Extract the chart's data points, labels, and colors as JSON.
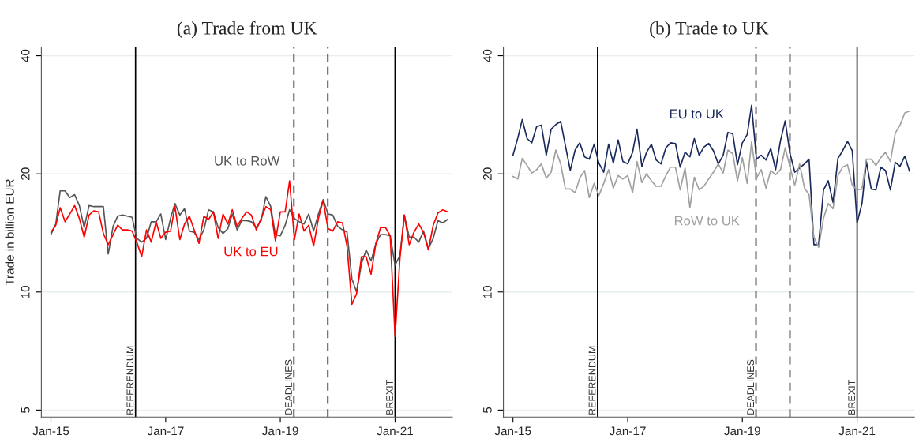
{
  "chart_data": [
    {
      "type": "line",
      "title": "(a) Trade from UK",
      "ylabel": "Trade in billion EUR",
      "log": "y",
      "grid": "y",
      "legend": false,
      "x": [
        "2015-01",
        "2015-02",
        "2015-03",
        "2015-04",
        "2015-05",
        "2015-06",
        "2015-07",
        "2015-08",
        "2015-09",
        "2015-10",
        "2015-11",
        "2015-12",
        "2016-01",
        "2016-02",
        "2016-03",
        "2016-04",
        "2016-05",
        "2016-06",
        "2016-07",
        "2016-08",
        "2016-09",
        "2016-10",
        "2016-11",
        "2016-12",
        "2017-01",
        "2017-02",
        "2017-03",
        "2017-04",
        "2017-05",
        "2017-06",
        "2017-07",
        "2017-08",
        "2017-09",
        "2017-10",
        "2017-11",
        "2017-12",
        "2018-01",
        "2018-02",
        "2018-03",
        "2018-04",
        "2018-05",
        "2018-06",
        "2018-07",
        "2018-08",
        "2018-09",
        "2018-10",
        "2018-11",
        "2018-12",
        "2019-01",
        "2019-02",
        "2019-03",
        "2019-04",
        "2019-05",
        "2019-06",
        "2019-07",
        "2019-08",
        "2019-09",
        "2019-10",
        "2019-11",
        "2019-12",
        "2020-01",
        "2020-02",
        "2020-03",
        "2020-04",
        "2020-05",
        "2020-06",
        "2020-07",
        "2020-08",
        "2020-09",
        "2020-10",
        "2020-11",
        "2020-12",
        "2021-01",
        "2021-02",
        "2021-03",
        "2021-04",
        "2021-05",
        "2021-06",
        "2021-07",
        "2021-08",
        "2021-09",
        "2021-10",
        "2021-11",
        "2021-12"
      ],
      "xlim": [
        "2014-11",
        "2022-01"
      ],
      "xticks": [
        {
          "value": "2015-01",
          "label": "Jan-15"
        },
        {
          "value": "2017-01",
          "label": "Jan-17"
        },
        {
          "value": "2019-01",
          "label": "Jan-19"
        },
        {
          "value": "2021-01",
          "label": "Jan-21"
        }
      ],
      "ylim": [
        4.8,
        42
      ],
      "yticks": [
        5,
        10,
        20,
        40
      ],
      "series": [
        {
          "name": "UK to RoW",
          "color": "#555555",
          "values": [
            14.0,
            14.9,
            18.1,
            18.1,
            17.4,
            17.7,
            16.6,
            14.6,
            16.6,
            16.5,
            16.5,
            16.5,
            12.5,
            14.7,
            15.6,
            15.7,
            15.6,
            15.5,
            13.7,
            13.4,
            13.7,
            15.1,
            15.1,
            15.8,
            13.6,
            15.4,
            16.8,
            15.7,
            16.3,
            14.3,
            14.2,
            13.6,
            14.4,
            16.2,
            16.0,
            14.6,
            14.1,
            14.5,
            15.8,
            14.4,
            15.2,
            15.2,
            15.1,
            14.6,
            15.2,
            17.5,
            16.5,
            14.0,
            13.9,
            14.8,
            16.2,
            15.4,
            15.1,
            14.9,
            15.8,
            14.3,
            15.8,
            17.2,
            15.8,
            15.7,
            14.7,
            14.4,
            14.2,
            10.8,
            10.0,
            11.8,
            12.8,
            12.0,
            13.3,
            14.0,
            14.0,
            13.9,
            11.7,
            12.4,
            15.7,
            13.8,
            13.8,
            13.4,
            14.3,
            12.9,
            13.7,
            15.2,
            15.0,
            15.3
          ]
        },
        {
          "name": "UK to EU",
          "color": "#ff0000",
          "values": [
            14.2,
            14.8,
            16.4,
            15.1,
            15.8,
            16.6,
            15.4,
            13.8,
            15.7,
            16.1,
            16.0,
            14.1,
            13.2,
            14.0,
            14.8,
            14.4,
            14.4,
            14.3,
            13.4,
            12.3,
            14.4,
            13.4,
            15.1,
            13.7,
            14.2,
            14.3,
            16.5,
            13.6,
            14.9,
            15.6,
            14.4,
            13.3,
            15.6,
            15.3,
            16.0,
            13.7,
            15.8,
            14.9,
            16.2,
            14.7,
            15.4,
            16.0,
            15.7,
            14.4,
            15.4,
            16.5,
            16.2,
            13.5,
            16.0,
            16.0,
            19.2,
            13.6,
            15.8,
            14.3,
            14.8,
            13.1,
            15.4,
            17.1,
            14.5,
            14.3,
            15.1,
            15.0,
            13.1,
            9.3,
            9.9,
            12.3,
            12.3,
            11.1,
            13.3,
            14.6,
            14.6,
            13.9,
            7.7,
            12.2,
            15.7,
            13.2,
            14.2,
            14.9,
            14.2,
            12.8,
            14.8,
            15.9,
            16.2,
            16.0
          ]
        }
      ],
      "ref_lines": [
        {
          "axis": "x",
          "value": "2016-06-23",
          "label": "REFERENDUM",
          "color": "#000000",
          "line_style": "solid"
        },
        {
          "axis": "x",
          "value": "2019-03-29",
          "label": "DEADLINES",
          "color": "#000000",
          "line_style": "dashed"
        },
        {
          "axis": "x",
          "value": "2019-10-31",
          "color": "#000000",
          "line_style": "dashed"
        },
        {
          "axis": "x",
          "value": "2021-01-01",
          "label": "BREXIT",
          "color": "#000000",
          "line_style": "solid"
        }
      ]
    },
    {
      "type": "line",
      "title": "(b) Trade to UK",
      "log": "y",
      "grid": "y",
      "legend": false,
      "x": [
        "2015-01",
        "2015-02",
        "2015-03",
        "2015-04",
        "2015-05",
        "2015-06",
        "2015-07",
        "2015-08",
        "2015-09",
        "2015-10",
        "2015-11",
        "2015-12",
        "2016-01",
        "2016-02",
        "2016-03",
        "2016-04",
        "2016-05",
        "2016-06",
        "2016-07",
        "2016-08",
        "2016-09",
        "2016-10",
        "2016-11",
        "2016-12",
        "2017-01",
        "2017-02",
        "2017-03",
        "2017-04",
        "2017-05",
        "2017-06",
        "2017-07",
        "2017-08",
        "2017-09",
        "2017-10",
        "2017-11",
        "2017-12",
        "2018-01",
        "2018-02",
        "2018-03",
        "2018-04",
        "2018-05",
        "2018-06",
        "2018-07",
        "2018-08",
        "2018-09",
        "2018-10",
        "2018-11",
        "2018-12",
        "2019-01",
        "2019-02",
        "2019-03",
        "2019-04",
        "2019-05",
        "2019-06",
        "2019-07",
        "2019-08",
        "2019-09",
        "2019-10",
        "2019-11",
        "2019-12",
        "2020-01",
        "2020-02",
        "2020-03",
        "2020-04",
        "2020-05",
        "2020-06",
        "2020-07",
        "2020-08",
        "2020-09",
        "2020-10",
        "2020-11",
        "2020-12",
        "2021-01",
        "2021-02",
        "2021-03",
        "2021-04",
        "2021-05",
        "2021-06",
        "2021-07",
        "2021-08",
        "2021-09",
        "2021-10",
        "2021-11",
        "2021-12"
      ],
      "xlim": [
        "2014-11",
        "2022-01"
      ],
      "xticks": [
        {
          "value": "2015-01",
          "label": "Jan-15"
        },
        {
          "value": "2017-01",
          "label": "Jan-17"
        },
        {
          "value": "2019-01",
          "label": "Jan-19"
        },
        {
          "value": "2021-01",
          "label": "Jan-21"
        }
      ],
      "ylim": [
        4.8,
        42
      ],
      "yticks": [
        5,
        10,
        20,
        40
      ],
      "series": [
        {
          "name": "EU to UK",
          "color": "#1b2a5c",
          "values": [
            22.3,
            24.7,
            27.5,
            24.6,
            24.0,
            26.4,
            26.6,
            22.3,
            26.0,
            26.7,
            27.2,
            23.6,
            20.4,
            23.0,
            24.0,
            22.1,
            21.8,
            23.8,
            21.3,
            20.2,
            23.8,
            21.3,
            24.4,
            21.5,
            21.2,
            22.7,
            26.0,
            20.9,
            22.7,
            23.8,
            21.7,
            21.2,
            23.3,
            24.0,
            23.9,
            20.8,
            22.7,
            22.1,
            24.6,
            22.3,
            23.4,
            23.9,
            22.9,
            21.2,
            22.3,
            25.5,
            25.3,
            21.1,
            24.0,
            25.2,
            29.9,
            21.8,
            22.3,
            21.7,
            23.2,
            20.5,
            24.3,
            27.3,
            22.5,
            20.2,
            20.7,
            21.2,
            21.8,
            13.2,
            13.2,
            18.2,
            19.2,
            16.9,
            21.9,
            22.9,
            24.2,
            22.9,
            15.0,
            16.8,
            21.5,
            18.3,
            18.2,
            20.8,
            20.4,
            18.2,
            21.4,
            20.9,
            22.2,
            20.3
          ]
        },
        {
          "name": "RoW to UK",
          "color": "#a0a0a0",
          "values": [
            19.7,
            19.4,
            21.9,
            21.0,
            20.1,
            20.5,
            21.2,
            19.5,
            20.2,
            23.0,
            21.2,
            18.3,
            18.3,
            17.9,
            19.5,
            20.4,
            17.4,
            18.9,
            17.6,
            18.9,
            20.5,
            18.4,
            19.8,
            19.4,
            19.8,
            17.9,
            21.5,
            19.0,
            20.0,
            19.2,
            18.6,
            18.6,
            19.8,
            20.8,
            20.8,
            18.2,
            20.7,
            16.4,
            19.6,
            18.2,
            18.6,
            19.4,
            20.2,
            21.2,
            20.1,
            23.0,
            22.5,
            19.2,
            22.0,
            18.9,
            24.1,
            19.5,
            20.5,
            18.4,
            20.4,
            19.9,
            20.5,
            23.3,
            20.8,
            18.7,
            21.2,
            18.4,
            17.7,
            13.8,
            13.0,
            15.4,
            16.8,
            16.3,
            19.8,
            20.8,
            21.1,
            18.7,
            18.2,
            18.3,
            21.8,
            21.8,
            21.0,
            22.0,
            22.7,
            21.5,
            25.4,
            26.6,
            28.6,
            28.9
          ]
        }
      ],
      "ref_lines": [
        {
          "axis": "x",
          "value": "2016-06-23",
          "label": "REFERENDUM",
          "color": "#000000",
          "line_style": "solid"
        },
        {
          "axis": "x",
          "value": "2019-03-29",
          "label": "DEADLINES",
          "color": "#000000",
          "line_style": "dashed"
        },
        {
          "axis": "x",
          "value": "2019-10-31",
          "color": "#000000",
          "line_style": "dashed"
        },
        {
          "axis": "x",
          "value": "2021-01-01",
          "label": "BREXIT",
          "color": "#000000",
          "line_style": "solid"
        }
      ]
    }
  ]
}
